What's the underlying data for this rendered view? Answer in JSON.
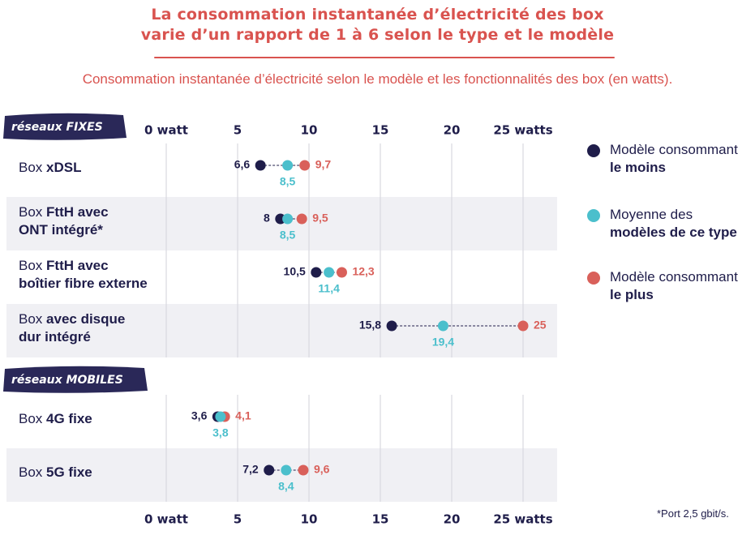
{
  "title": {
    "line1": "La consommation instantanée d’électricité des box",
    "line2": "varie d’un rapport de 1 à 6 selon le type et le modèle"
  },
  "subtitle": "Consommation instantanée d’électricité selon le modèle et les fonctionnalités des box (en watts).",
  "footnote": "*Port 2,5 gbit/s.",
  "colors": {
    "min": "#1f1d4a",
    "avg": "#4bbfcc",
    "max": "#d9605a",
    "title": "#d9534f",
    "band": "#f0f0f4",
    "badge": "#2a2858"
  },
  "legend": [
    {
      "key": "min",
      "line1": "Modèle consommant",
      "line2": "le moins"
    },
    {
      "key": "avg",
      "line1": "Moyenne des",
      "line2": "modèles de ce type"
    },
    {
      "key": "max",
      "line1": "Modèle consommant",
      "line2": "le plus"
    }
  ],
  "chart_data": {
    "type": "dumbbell",
    "title": "La consommation instantanée d’électricité des box varie d’un rapport de 1 à 6 selon le type et le modèle",
    "xlabel": "watts",
    "xlim": [
      0,
      25
    ],
    "ticks": [
      {
        "value": 0,
        "label": "0 watt"
      },
      {
        "value": 5,
        "label": "5"
      },
      {
        "value": 10,
        "label": "10"
      },
      {
        "value": 15,
        "label": "15"
      },
      {
        "value": 20,
        "label": "20"
      },
      {
        "value": 25,
        "label": "25 watts"
      }
    ],
    "groups": [
      {
        "name": "réseaux FIXES",
        "rows": [
          {
            "label_parts": [
              [
                "Box ",
                false
              ],
              [
                "xDSL",
                true
              ]
            ],
            "min": 6.6,
            "avg": 8.5,
            "max": 9.7,
            "min_label": "6,6",
            "avg_label": "8,5",
            "max_label": "9,7"
          },
          {
            "label_parts": [
              [
                "Box ",
                false
              ],
              [
                "FttH avec",
                true
              ],
              [
                "\n",
                false
              ],
              [
                "ONT intégré*",
                true
              ]
            ],
            "min": 8,
            "avg": 8.5,
            "max": 9.5,
            "min_label": "8",
            "avg_label": "8,5",
            "max_label": "9,5"
          },
          {
            "label_parts": [
              [
                "Box ",
                false
              ],
              [
                "FttH avec",
                true
              ],
              [
                "\n",
                false
              ],
              [
                "boîtier fibre externe",
                true
              ]
            ],
            "min": 10.5,
            "avg": 11.4,
            "max": 12.3,
            "min_label": "10,5",
            "avg_label": "11,4",
            "max_label": "12,3"
          },
          {
            "label_parts": [
              [
                "Box ",
                false
              ],
              [
                "avec disque",
                true
              ],
              [
                "\n",
                false
              ],
              [
                "dur intégré",
                true
              ]
            ],
            "min": 15.8,
            "avg": 19.4,
            "max": 25,
            "min_label": "15,8",
            "avg_label": "19,4",
            "max_label": "25"
          }
        ]
      },
      {
        "name": "réseaux MOBILES",
        "rows": [
          {
            "label_parts": [
              [
                "Box ",
                false
              ],
              [
                "4G fixe",
                true
              ]
            ],
            "min": 3.6,
            "avg": 3.8,
            "max": 4.1,
            "min_label": "3,6",
            "avg_label": "3,8",
            "max_label": "4,1"
          },
          {
            "label_parts": [
              [
                "Box ",
                false
              ],
              [
                "5G fixe",
                true
              ]
            ],
            "min": 7.2,
            "avg": 8.4,
            "max": 9.6,
            "min_label": "7,2",
            "avg_label": "8,4",
            "max_label": "9,6"
          }
        ]
      }
    ]
  }
}
